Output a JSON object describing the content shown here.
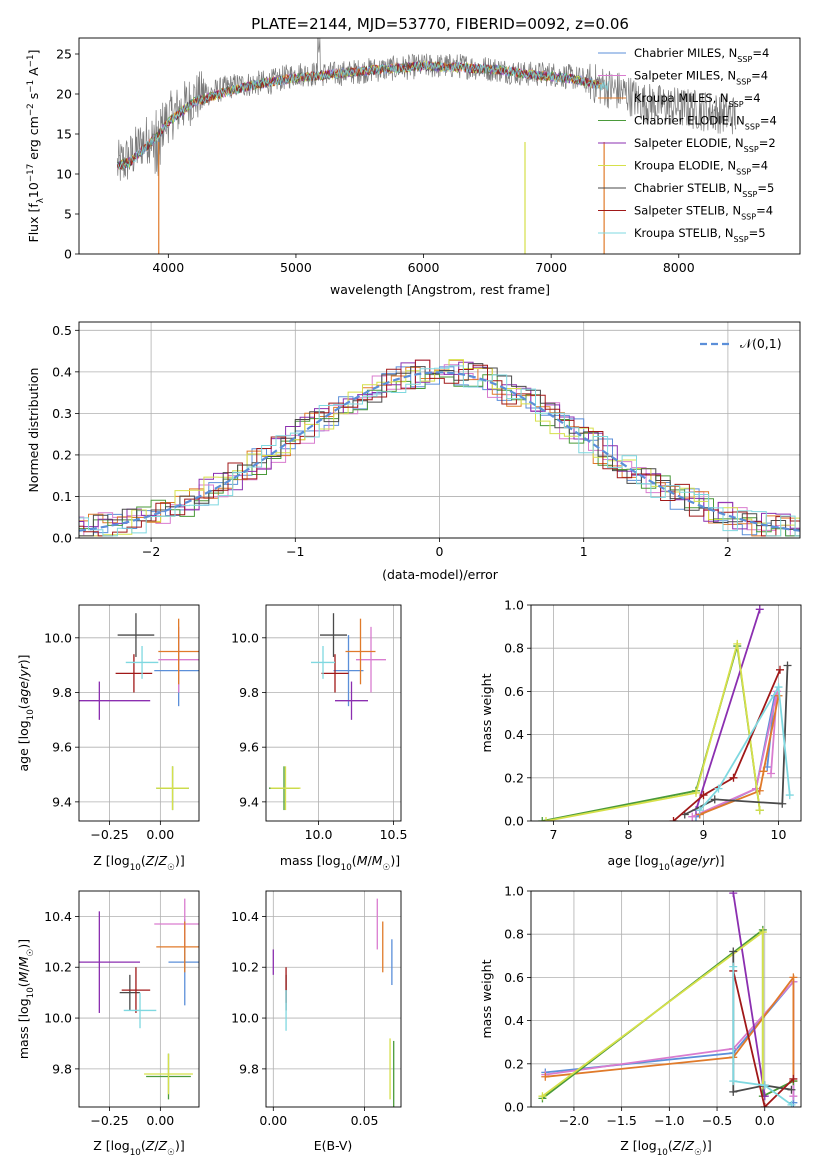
{
  "palette": {
    "chabrier_miles": "#5b8fd9",
    "salpeter_miles": "#d97ccf",
    "kroupa_miles": "#e07a2a",
    "chabrier_elodie": "#4a9a3a",
    "salpeter_elodie": "#8b2fb0",
    "kroupa_elodie": "#d6e04a",
    "chabrier_stelib": "#4a4a4a",
    "salpeter_stelib": "#a01818",
    "kroupa_stelib": "#7fd8e0",
    "gauss": "#5b8fd9",
    "grid": "#b0b0b0"
  },
  "chart_data": [
    {
      "type": "line",
      "title": "PLATE=2144, MJD=53770, FIBERID=0092, z=0.06",
      "xlabel": "wavelength [Angstrom, rest frame]",
      "ylabel": "Flux [fλ10⁻¹⁷ erg cm⁻² s⁻¹ A⁻¹]",
      "xlim": [
        3300,
        8950
      ],
      "ylim": [
        0,
        27
      ],
      "x_ticks": [
        4000,
        5000,
        6000,
        7000,
        8000
      ],
      "y_ticks": [
        0,
        5,
        10,
        15,
        20,
        25
      ],
      "legend_position": "top-right",
      "legend": [
        {
          "label": "Chabrier MILES, N",
          "sub": "SSP",
          "suffix": "=4",
          "color": "#5b8fd9"
        },
        {
          "label": "Salpeter MILES, N",
          "sub": "SSP",
          "suffix": "=4",
          "color": "#d97ccf"
        },
        {
          "label": "Kroupa MILES, N",
          "sub": "SSP",
          "suffix": "=4",
          "color": "#e07a2a"
        },
        {
          "label": "Chabrier ELODIE, N",
          "sub": "SSP",
          "suffix": "=4",
          "color": "#4a9a3a"
        },
        {
          "label": "Salpeter ELODIE, N",
          "sub": "SSP",
          "suffix": "=2",
          "color": "#8b2fb0"
        },
        {
          "label": "Kroupa ELODIE, N",
          "sub": "SSP",
          "suffix": "=4",
          "color": "#d6e04a"
        },
        {
          "label": "Chabrier STELIB, N",
          "sub": "SSP",
          "suffix": "=5",
          "color": "#4a4a4a"
        },
        {
          "label": "Salpeter STELIB, N",
          "sub": "SSP",
          "suffix": "=4",
          "color": "#a01818"
        },
        {
          "label": "Kroupa STELIB, N",
          "sub": "SSP",
          "suffix": "=5",
          "color": "#7fd8e0"
        }
      ],
      "spectrum_continuum": [
        [
          3600,
          11
        ],
        [
          3700,
          12
        ],
        [
          3800,
          14
        ],
        [
          3900,
          15
        ],
        [
          4000,
          17
        ],
        [
          4200,
          19.5
        ],
        [
          4500,
          21
        ],
        [
          4800,
          21.5
        ],
        [
          5000,
          22.5
        ],
        [
          5300,
          22.5
        ],
        [
          5600,
          23
        ],
        [
          6000,
          23.5
        ],
        [
          6300,
          23.5
        ],
        [
          6600,
          23
        ],
        [
          6800,
          22.5
        ],
        [
          7000,
          22.5
        ],
        [
          7200,
          22
        ],
        [
          7400,
          21
        ],
        [
          7500,
          20.5
        ],
        [
          7600,
          20
        ],
        [
          7700,
          19
        ]
      ],
      "model_continuum": [
        [
          3600,
          11
        ],
        [
          3700,
          11.5
        ],
        [
          3800,
          13
        ],
        [
          3900,
          14.5
        ],
        [
          4000,
          16.5
        ],
        [
          4200,
          19
        ],
        [
          4500,
          20.5
        ],
        [
          4800,
          21.5
        ],
        [
          5000,
          22
        ],
        [
          5300,
          22.5
        ],
        [
          5600,
          23
        ],
        [
          6000,
          23.5
        ],
        [
          6300,
          23.3
        ],
        [
          6600,
          23
        ],
        [
          6800,
          22.5
        ],
        [
          7000,
          22.2
        ],
        [
          7200,
          21.8
        ],
        [
          7400,
          21
        ]
      ]
    },
    {
      "type": "histogram",
      "xlabel": "(data-model)/error",
      "ylabel": "Normed distribution",
      "xlim": [
        -2.5,
        2.5
      ],
      "ylim": [
        0,
        0.52
      ],
      "x_ticks": [
        -2,
        -1,
        0,
        1,
        2
      ],
      "y_ticks": [
        0.0,
        0.1,
        0.2,
        0.3,
        0.4,
        0.5
      ],
      "legend_position": "top-right",
      "legend_label": "𝒩(0,1)",
      "grid": true
    },
    {
      "type": "scatter",
      "xlabel": "Z [log₁₀(Z/Z☉)]",
      "ylabel": "age  [log₁₀(age/yr)]",
      "xlim": [
        -0.4,
        0.19
      ],
      "ylim": [
        9.33,
        10.12
      ],
      "x_ticks": [
        -0.25,
        0.0
      ],
      "x_tick_labels": [
        "−0.25",
        "0.00"
      ],
      "y_ticks": [
        9.4,
        9.6,
        9.8,
        10.0
      ],
      "grid": true,
      "points": [
        {
          "x": 0.09,
          "y": 9.88,
          "xerr": 0.12,
          "yerr": 0.13,
          "color": "#5b8fd9"
        },
        {
          "x": 0.09,
          "y": 9.92,
          "xerr": 0.1,
          "yerr": 0.12,
          "color": "#d97ccf"
        },
        {
          "x": 0.09,
          "y": 9.95,
          "xerr": 0.1,
          "yerr": 0.12,
          "color": "#e07a2a"
        },
        {
          "x": 0.06,
          "y": 9.45,
          "xerr": 0.08,
          "yerr": 0.08,
          "color": "#4a9a3a"
        },
        {
          "x": -0.3,
          "y": 9.77,
          "xerr": 0.25,
          "yerr": 0.07,
          "color": "#8b2fb0"
        },
        {
          "x": 0.06,
          "y": 9.45,
          "xerr": 0.08,
          "yerr": 0.08,
          "color": "#d6e04a"
        },
        {
          "x": -0.12,
          "y": 10.01,
          "xerr": 0.09,
          "yerr": 0.08,
          "color": "#4a4a4a"
        },
        {
          "x": -0.13,
          "y": 9.87,
          "xerr": 0.09,
          "yerr": 0.07,
          "color": "#a01818"
        },
        {
          "x": -0.09,
          "y": 9.91,
          "xerr": 0.08,
          "yerr": 0.06,
          "color": "#7fd8e0"
        }
      ]
    },
    {
      "type": "scatter",
      "xlabel": "mass [log₁₀(M/M☉)]",
      "xlim": [
        9.65,
        10.55
      ],
      "ylim": [
        9.33,
        10.12
      ],
      "x_ticks": [
        10.0,
        10.5
      ],
      "x_tick_labels": [
        "10.0",
        "10.5"
      ],
      "y_ticks": [
        9.4,
        9.6,
        9.8,
        10.0
      ],
      "grid": true,
      "points": [
        {
          "x": 10.2,
          "y": 9.88,
          "xerr": 0.1,
          "yerr": 0.13,
          "color": "#5b8fd9"
        },
        {
          "x": 10.35,
          "y": 9.92,
          "xerr": 0.1,
          "yerr": 0.12,
          "color": "#d97ccf"
        },
        {
          "x": 10.28,
          "y": 9.95,
          "xerr": 0.1,
          "yerr": 0.12,
          "color": "#e07a2a"
        },
        {
          "x": 9.77,
          "y": 9.45,
          "xerr": 0.1,
          "yerr": 0.08,
          "color": "#4a9a3a"
        },
        {
          "x": 10.22,
          "y": 9.77,
          "xerr": 0.11,
          "yerr": 0.07,
          "color": "#8b2fb0"
        },
        {
          "x": 9.78,
          "y": 9.45,
          "xerr": 0.1,
          "yerr": 0.08,
          "color": "#d6e04a"
        },
        {
          "x": 10.1,
          "y": 10.01,
          "xerr": 0.09,
          "yerr": 0.08,
          "color": "#4a4a4a"
        },
        {
          "x": 10.11,
          "y": 9.87,
          "xerr": 0.09,
          "yerr": 0.07,
          "color": "#a01818"
        },
        {
          "x": 10.03,
          "y": 9.91,
          "xerr": 0.08,
          "yerr": 0.06,
          "color": "#7fd8e0"
        }
      ]
    },
    {
      "type": "line",
      "xlabel": "age  [log₁₀(age/yr)]",
      "ylabel": "mass weight",
      "xlim": [
        6.7,
        10.3
      ],
      "ylim": [
        0,
        1.0
      ],
      "x_ticks": [
        7,
        8,
        9,
        10
      ],
      "y_ticks": [
        0.0,
        0.2,
        0.4,
        0.6,
        0.8,
        1.0
      ],
      "grid": true,
      "series": [
        {
          "color": "#5b8fd9",
          "points": [
            [
              8.9,
              0.02
            ],
            [
              9.7,
              0.15
            ],
            [
              9.95,
              0.58
            ],
            [
              9.85,
              0.25
            ]
          ]
        },
        {
          "color": "#d97ccf",
          "points": [
            [
              8.85,
              0.02
            ],
            [
              9.7,
              0.15
            ],
            [
              9.98,
              0.6
            ],
            [
              9.9,
              0.22
            ]
          ]
        },
        {
          "color": "#e07a2a",
          "points": [
            [
              8.95,
              0.03
            ],
            [
              9.75,
              0.14
            ],
            [
              10.0,
              0.58
            ],
            [
              9.8,
              0.23
            ]
          ]
        },
        {
          "color": "#4a9a3a",
          "points": [
            [
              6.85,
              0.0
            ],
            [
              8.9,
              0.14
            ],
            [
              9.45,
              0.81
            ],
            [
              9.75,
              0.05
            ]
          ]
        },
        {
          "color": "#8b2fb0",
          "points": [
            [
              8.9,
              0.05
            ],
            [
              9.75,
              0.98
            ]
          ]
        },
        {
          "color": "#d6e04a",
          "points": [
            [
              6.9,
              0.0
            ],
            [
              8.9,
              0.13
            ],
            [
              9.45,
              0.82
            ],
            [
              9.75,
              0.05
            ]
          ]
        },
        {
          "color": "#4a4a4a",
          "points": [
            [
              8.75,
              0.03
            ],
            [
              9.15,
              0.1
            ],
            [
              10.05,
              0.08
            ],
            [
              10.12,
              0.72
            ]
          ]
        },
        {
          "color": "#a01818",
          "points": [
            [
              8.6,
              0.0
            ],
            [
              9.0,
              0.12
            ],
            [
              9.4,
              0.2
            ],
            [
              10.02,
              0.7
            ]
          ]
        },
        {
          "color": "#7fd8e0",
          "points": [
            [
              8.95,
              0.05
            ],
            [
              9.2,
              0.15
            ],
            [
              10.0,
              0.62
            ],
            [
              10.15,
              0.12
            ]
          ]
        }
      ]
    },
    {
      "type": "scatter",
      "xlabel": "Z [log₁₀(Z/Z☉)]",
      "ylabel": "mass [log₁₀(M/M☉)]",
      "xlim": [
        -0.4,
        0.19
      ],
      "ylim": [
        9.65,
        10.5
      ],
      "x_ticks": [
        -0.25,
        0.0
      ],
      "x_tick_labels": [
        "−0.25",
        "0.00"
      ],
      "y_ticks": [
        9.8,
        10.0,
        10.2,
        10.4
      ],
      "grid": true,
      "points": [
        {
          "x": 0.12,
          "y": 10.22,
          "xerr": 0.08,
          "yerr": 0.17,
          "color": "#5b8fd9"
        },
        {
          "x": 0.12,
          "y": 10.37,
          "xerr": 0.15,
          "yerr": 0.1,
          "color": "#d97ccf"
        },
        {
          "x": 0.12,
          "y": 10.28,
          "xerr": 0.14,
          "yerr": 0.1,
          "color": "#e07a2a"
        },
        {
          "x": 0.04,
          "y": 9.77,
          "xerr": 0.11,
          "yerr": 0.09,
          "color": "#4a9a3a"
        },
        {
          "x": -0.3,
          "y": 10.22,
          "xerr": 0.2,
          "yerr": 0.2,
          "color": "#8b2fb0"
        },
        {
          "x": 0.04,
          "y": 9.78,
          "xerr": 0.12,
          "yerr": 0.08,
          "color": "#d6e04a"
        },
        {
          "x": -0.15,
          "y": 10.1,
          "xerr": 0.05,
          "yerr": 0.07,
          "color": "#4a4a4a"
        },
        {
          "x": -0.12,
          "y": 10.11,
          "xerr": 0.07,
          "yerr": 0.09,
          "color": "#a01818"
        },
        {
          "x": -0.1,
          "y": 10.03,
          "xerr": 0.08,
          "yerr": 0.07,
          "color": "#7fd8e0"
        }
      ]
    },
    {
      "type": "scatter",
      "xlabel": "E(B-V)",
      "xlim": [
        -0.004,
        0.07
      ],
      "ylim": [
        9.65,
        10.5
      ],
      "x_ticks": [
        0.0,
        0.05
      ],
      "x_tick_labels": [
        "0.00",
        "0.05"
      ],
      "y_ticks": [
        9.8,
        10.0,
        10.2,
        10.4
      ],
      "grid": true,
      "points": [
        {
          "x": 0.065,
          "y": 10.22,
          "xerr": 0,
          "yerr": 0.09,
          "color": "#5b8fd9"
        },
        {
          "x": 0.057,
          "y": 10.37,
          "xerr": 0,
          "yerr": 0.1,
          "color": "#d97ccf"
        },
        {
          "x": 0.06,
          "y": 10.28,
          "xerr": 0,
          "yerr": 0.1,
          "color": "#e07a2a"
        },
        {
          "x": 0.066,
          "y": 9.78,
          "xerr": 0,
          "yerr": 0.13,
          "color": "#4a9a3a"
        },
        {
          "x": 0.0,
          "y": 10.22,
          "xerr": 0,
          "yerr": 0.05,
          "color": "#8b2fb0"
        },
        {
          "x": 0.064,
          "y": 9.8,
          "xerr": 0,
          "yerr": 0.12,
          "color": "#d6e04a"
        },
        {
          "x": 0.007,
          "y": 10.1,
          "xerr": 0,
          "yerr": 0.07,
          "color": "#4a4a4a"
        },
        {
          "x": 0.007,
          "y": 10.13,
          "xerr": 0,
          "yerr": 0.07,
          "color": "#a01818"
        },
        {
          "x": 0.007,
          "y": 10.03,
          "xerr": 0,
          "yerr": 0.08,
          "color": "#7fd8e0"
        }
      ]
    },
    {
      "type": "line",
      "xlabel": "Z [log₁₀(Z/Z☉)]",
      "ylabel": "mass weight",
      "xlim": [
        -2.45,
        0.38
      ],
      "ylim": [
        0,
        1.0
      ],
      "x_ticks": [
        -2.0,
        -1.5,
        -1.0,
        -0.5,
        0.0
      ],
      "x_tick_labels": [
        "−2.0",
        "−1.5",
        "−1.0",
        "−0.5",
        "0.0"
      ],
      "y_ticks": [
        0.0,
        0.2,
        0.4,
        0.6,
        0.8,
        1.0
      ],
      "grid": true,
      "series": [
        {
          "color": "#5b8fd9",
          "points": [
            [
              -2.3,
              0.16
            ],
            [
              -0.33,
              0.25
            ],
            [
              0.3,
              0.58
            ],
            [
              0.3,
              0.02
            ]
          ]
        },
        {
          "color": "#d97ccf",
          "points": [
            [
              -2.3,
              0.15
            ],
            [
              -0.33,
              0.27
            ],
            [
              0.3,
              0.58
            ],
            [
              0.3,
              0.05
            ]
          ]
        },
        {
          "color": "#e07a2a",
          "points": [
            [
              -2.3,
              0.14
            ],
            [
              -0.33,
              0.23
            ],
            [
              0.3,
              0.6
            ],
            [
              0.3,
              0.12
            ]
          ]
        },
        {
          "color": "#4a9a3a",
          "points": [
            [
              -2.33,
              0.04
            ],
            [
              -0.02,
              0.82
            ],
            [
              -0.02,
              0.05
            ],
            [
              0.3,
              0.12
            ]
          ]
        },
        {
          "color": "#8b2fb0",
          "points": [
            [
              -0.33,
              0.99
            ],
            [
              0.0,
              0.05
            ]
          ]
        },
        {
          "color": "#d6e04a",
          "points": [
            [
              -2.33,
              0.05
            ],
            [
              -0.02,
              0.81
            ],
            [
              -0.02,
              0.1
            ]
          ]
        },
        {
          "color": "#4a4a4a",
          "points": [
            [
              -0.33,
              0.72
            ],
            [
              -0.33,
              0.07
            ],
            [
              0.0,
              0.1
            ],
            [
              0.28,
              0.08
            ]
          ]
        },
        {
          "color": "#a01818",
          "points": [
            [
              -0.33,
              0.63
            ],
            [
              0.0,
              0.0
            ],
            [
              0.3,
              0.13
            ]
          ]
        },
        {
          "color": "#7fd8e0",
          "points": [
            [
              -0.33,
              0.65
            ],
            [
              -0.33,
              0.12
            ],
            [
              0.0,
              0.1
            ],
            [
              0.28,
              0.01
            ]
          ]
        }
      ]
    }
  ]
}
